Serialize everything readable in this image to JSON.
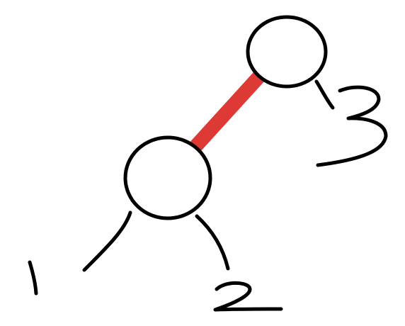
{
  "diagram": {
    "nodes": [
      {
        "id": "root"
      },
      {
        "id": "child-left"
      }
    ],
    "edges": [
      {
        "from": "root",
        "to": "child-left",
        "highlighted": true
      }
    ],
    "leaves": [
      {
        "label": "1"
      },
      {
        "label": "2"
      },
      {
        "label": "3"
      }
    ],
    "colors": {
      "highlight": "#dd3a36",
      "ink": "#000000",
      "background": "#ffffff"
    }
  }
}
